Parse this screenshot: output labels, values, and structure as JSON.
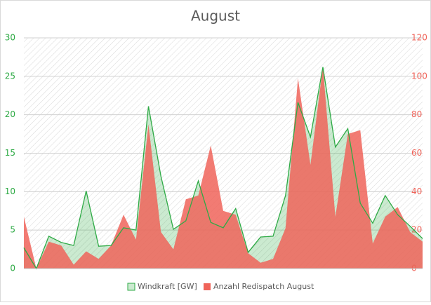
{
  "chart_data": {
    "type": "area",
    "title": "August",
    "categories": [
      null,
      null,
      null,
      null,
      null,
      null,
      null,
      null,
      null,
      null,
      null,
      null,
      null,
      null,
      null,
      null,
      null,
      null,
      null,
      null,
      null,
      null,
      null,
      null,
      null,
      null,
      null,
      null,
      null,
      null,
      null,
      null,
      null
    ],
    "series": [
      {
        "name": "Windkraft [GW]",
        "color": "#2eaa45",
        "axis": "y",
        "values": [
          2.7,
          0,
          4.2,
          3.4,
          3.0,
          10.1,
          2.9,
          3.0,
          5.3,
          5.0,
          21.1,
          12,
          5.1,
          6.2,
          11.4,
          6.0,
          5.3,
          7.8,
          2.1,
          4.1,
          4.2,
          9.5,
          21.6,
          17.1,
          26.2,
          15.8,
          18.2,
          8.5,
          5.9,
          9.5,
          7.0,
          5.5,
          3.9
        ]
      },
      {
        "name": "Anzahl Redispatch August",
        "color": "#f0645a",
        "axis": "y2",
        "values": [
          27,
          0,
          14,
          12,
          2,
          9,
          5,
          12,
          28,
          15,
          75,
          19,
          10,
          36,
          38,
          64,
          30,
          28,
          8,
          3,
          5,
          21,
          99,
          54,
          105,
          27,
          70,
          72,
          13,
          27,
          32,
          19,
          14
        ]
      }
    ],
    "ylim": [
      0,
      30
    ],
    "yticks": [
      0,
      5,
      10,
      15,
      20,
      25,
      30
    ],
    "y2lim": [
      0,
      120
    ],
    "y2ticks": [
      0,
      20,
      40,
      60,
      80,
      100,
      120
    ],
    "grid": true,
    "legend": "bottom"
  }
}
